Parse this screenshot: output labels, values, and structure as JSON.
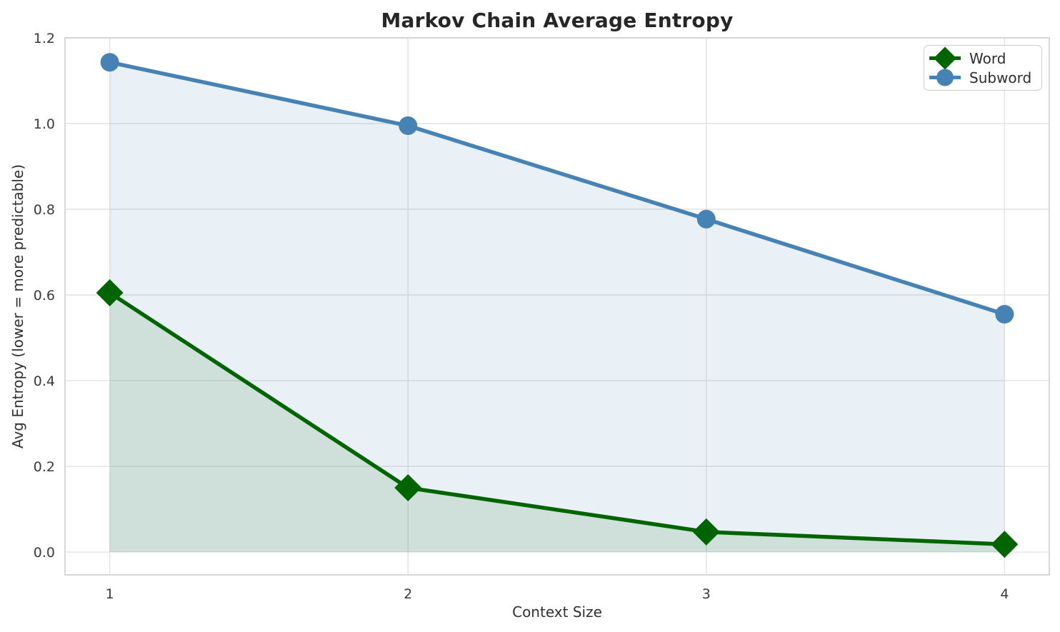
{
  "title": "Markov Chain Average Entropy",
  "chart_data": {
    "type": "line",
    "title": "Markov Chain Average Entropy",
    "xlabel": "Context Size",
    "ylabel": "Avg Entropy (lower = more predictable)",
    "x": [
      1,
      2,
      3,
      4
    ],
    "series": [
      {
        "name": "Word",
        "color": "#006400",
        "marker": "diamond",
        "values": [
          0.605,
          0.15,
          0.047,
          0.018
        ],
        "fill_alpha": 0.11
      },
      {
        "name": "Subword",
        "color": "#4682b4",
        "marker": "circle",
        "values": [
          1.143,
          0.995,
          0.777,
          0.555
        ],
        "fill_alpha": 0.12
      }
    ],
    "area_fill_to_zero": true,
    "x_ticks": [
      "1",
      "2",
      "3",
      "4"
    ],
    "y_ticks": [
      "0.0",
      "0.2",
      "0.4",
      "0.6",
      "0.8",
      "1.0",
      "1.2"
    ],
    "y_tick_values": [
      0.0,
      0.2,
      0.4,
      0.6,
      0.8,
      1.0,
      1.2
    ],
    "xlim": [
      0.85,
      4.15
    ],
    "ylim": [
      -0.0533,
      1.2
    ],
    "grid": true,
    "grid_color": "#e2e2e2",
    "spine_color": "#d4d4d4",
    "tick_label_color": "#3a3a3a",
    "legend_position": "upper right",
    "legend_labels": [
      "Word",
      "Subword"
    ]
  }
}
